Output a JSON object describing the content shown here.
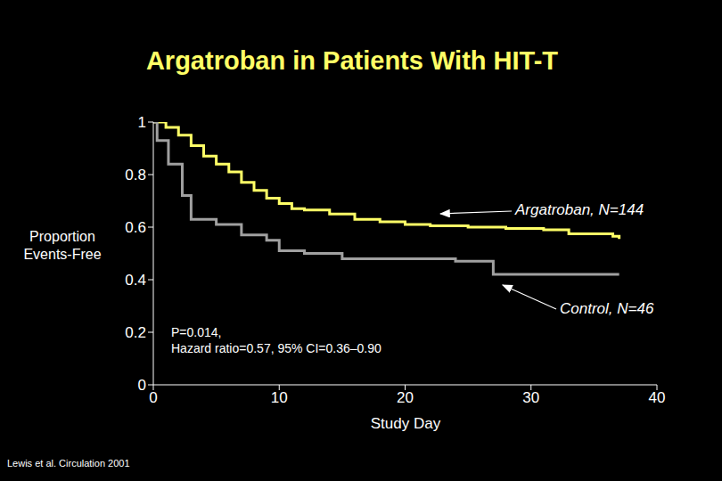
{
  "chart_data": {
    "type": "line",
    "title": "Argatroban in Patients With HIT-T",
    "x_label": "Study Day",
    "y_label": "Proportion Events-Free",
    "annotation": [
      "P=0.014,",
      "Hazard ratio=0.57, 95% CI=0.36–0.90"
    ],
    "source": "Lewis et al. Circulation 2001",
    "xlim": [
      0,
      40
    ],
    "xticks": [
      0,
      10,
      20,
      30,
      40
    ],
    "ylim": [
      0,
      1
    ],
    "yticks": [
      0,
      0.2,
      0.4,
      0.6,
      0.8,
      1
    ],
    "grid": false,
    "series": [
      {
        "name": "Argatroban, N=144",
        "color": "#ffff66",
        "line_style": "step",
        "x": [
          0,
          1,
          2,
          3,
          4,
          5,
          6,
          7,
          8,
          9,
          10,
          11,
          12,
          14,
          16,
          18,
          20,
          22,
          25,
          28,
          31,
          33,
          36.5,
          37
        ],
        "values": [
          1,
          0.98,
          0.95,
          0.91,
          0.87,
          0.84,
          0.81,
          0.77,
          0.74,
          0.71,
          0.69,
          0.67,
          0.665,
          0.65,
          0.63,
          0.62,
          0.61,
          0.605,
          0.6,
          0.595,
          0.59,
          0.575,
          0.565,
          0.555
        ]
      },
      {
        "name": "Control, N=46",
        "color": "#a0a0a0",
        "line_style": "step",
        "x": [
          0,
          0.3,
          1.2,
          2.3,
          3,
          5,
          7,
          9,
          10,
          12,
          15,
          24,
          27,
          37
        ],
        "values": [
          1,
          0.93,
          0.84,
          0.72,
          0.63,
          0.61,
          0.57,
          0.55,
          0.51,
          0.5,
          0.48,
          0.47,
          0.42,
          0.42
        ]
      }
    ]
  }
}
